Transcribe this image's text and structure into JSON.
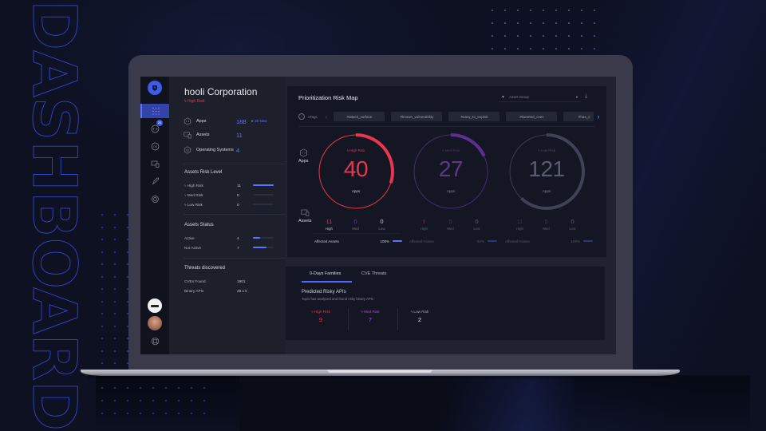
{
  "backdrop": {
    "headline": "DASHBOARD",
    "accent_color": "#3a5be8",
    "background_color": "#0d1122"
  },
  "sidebar": {
    "logo_icon": "shield-logo-icon",
    "items": [
      {
        "icon": "grid-dots-icon",
        "active": true
      },
      {
        "icon": "apps-code-icon",
        "badge": "20"
      },
      {
        "icon": "os-icon"
      },
      {
        "icon": "devices-icon"
      },
      {
        "icon": "rocket-icon"
      },
      {
        "icon": "settings-gear-icon"
      }
    ],
    "bottom": [
      {
        "icon": "org-logo-avatar"
      },
      {
        "icon": "user-avatar"
      },
      {
        "icon": "help-lifebuoy-icon"
      }
    ]
  },
  "overview": {
    "org_name": "hooli Corporation",
    "org_risk": "High Risk",
    "stats": [
      {
        "label": "Apps",
        "value": "188",
        "extra": "20 New",
        "icon": "apps-code-icon"
      },
      {
        "label": "Assets",
        "value": "11",
        "icon": "devices-icon"
      },
      {
        "label": "Operating Systems",
        "value": "4",
        "icon": "os-icon"
      }
    ],
    "assets_risk_level": {
      "title": "Assets Risk Level",
      "rows": [
        {
          "label": "High Risk",
          "value": "11",
          "bar_pct": 100,
          "color": "#e8364f"
        },
        {
          "label": "Med Risk",
          "value": "0",
          "bar_pct": 0,
          "color": "#a24bd9"
        },
        {
          "label": "Low Risk",
          "value": "0",
          "bar_pct": 0,
          "color": "#8d8fa0"
        }
      ]
    },
    "assets_status": {
      "title": "Assets Status",
      "rows": [
        {
          "label": "Active",
          "value": "4",
          "bar_pct": 36
        },
        {
          "label": "Not Active",
          "value": "7",
          "bar_pct": 64
        }
      ]
    },
    "threats": {
      "title": "Threats discovered",
      "rows": [
        {
          "label": "CVEs Found",
          "value": "1901"
        },
        {
          "label": "Binary APIs",
          "value": "28.1 k"
        }
      ]
    }
  },
  "risk_map": {
    "title": "Prioritization Risk Map",
    "filter_placeholder": "Asset Group",
    "xtags_label": "xTags",
    "tags": [
      "#attack_surface",
      "#known_vulnerability",
      "#easy_to_exploit",
      "#tweeted_cves",
      "#has_s"
    ],
    "apps_label": "Apps",
    "assets_label": "Assets",
    "rings": [
      {
        "risk": "High Risk",
        "value": "40",
        "sub": "Apps",
        "color": "#e8364f",
        "arc_pct": 30,
        "counts": [
          {
            "n": "11",
            "t": "High"
          },
          {
            "n": "0",
            "t": "Med"
          },
          {
            "n": "0",
            "t": "Low"
          }
        ],
        "affected_label": "Affected Assets",
        "affected_pct": "100%"
      },
      {
        "risk": "Med Risk",
        "value": "27",
        "sub": "Apps",
        "color": "#7d3bb8",
        "arc_pct": 18,
        "counts": [
          {
            "n": "9",
            "t": "High"
          },
          {
            "n": "0",
            "t": "Med"
          },
          {
            "n": "0",
            "t": "Low"
          }
        ],
        "affected_label": "Affected Assets",
        "affected_pct": "82%"
      },
      {
        "risk": "Low Risk",
        "value": "121",
        "sub": "Apps",
        "color": "#4a4d60",
        "arc_pct": 62,
        "counts": [
          {
            "n": "11",
            "t": "High"
          },
          {
            "n": "0",
            "t": "Med"
          },
          {
            "n": "0",
            "t": "Low"
          }
        ],
        "affected_label": "Affected Assets",
        "affected_pct": "100%"
      }
    ]
  },
  "threats_panel": {
    "tabs": [
      "0-Days Families",
      "CVE Threats"
    ],
    "active_tab": 0,
    "title": "Predicted Risky APIs",
    "subtitle": "Topio has analyzed and found risky binary APIs",
    "risks": [
      {
        "label": "High Risk",
        "value": "9",
        "color": "#e8364f"
      },
      {
        "label": "Med Risk",
        "value": "7",
        "color": "#b04be0"
      },
      {
        "label": "Low Risk",
        "value": "2",
        "color": "#c8c9d3"
      }
    ]
  }
}
